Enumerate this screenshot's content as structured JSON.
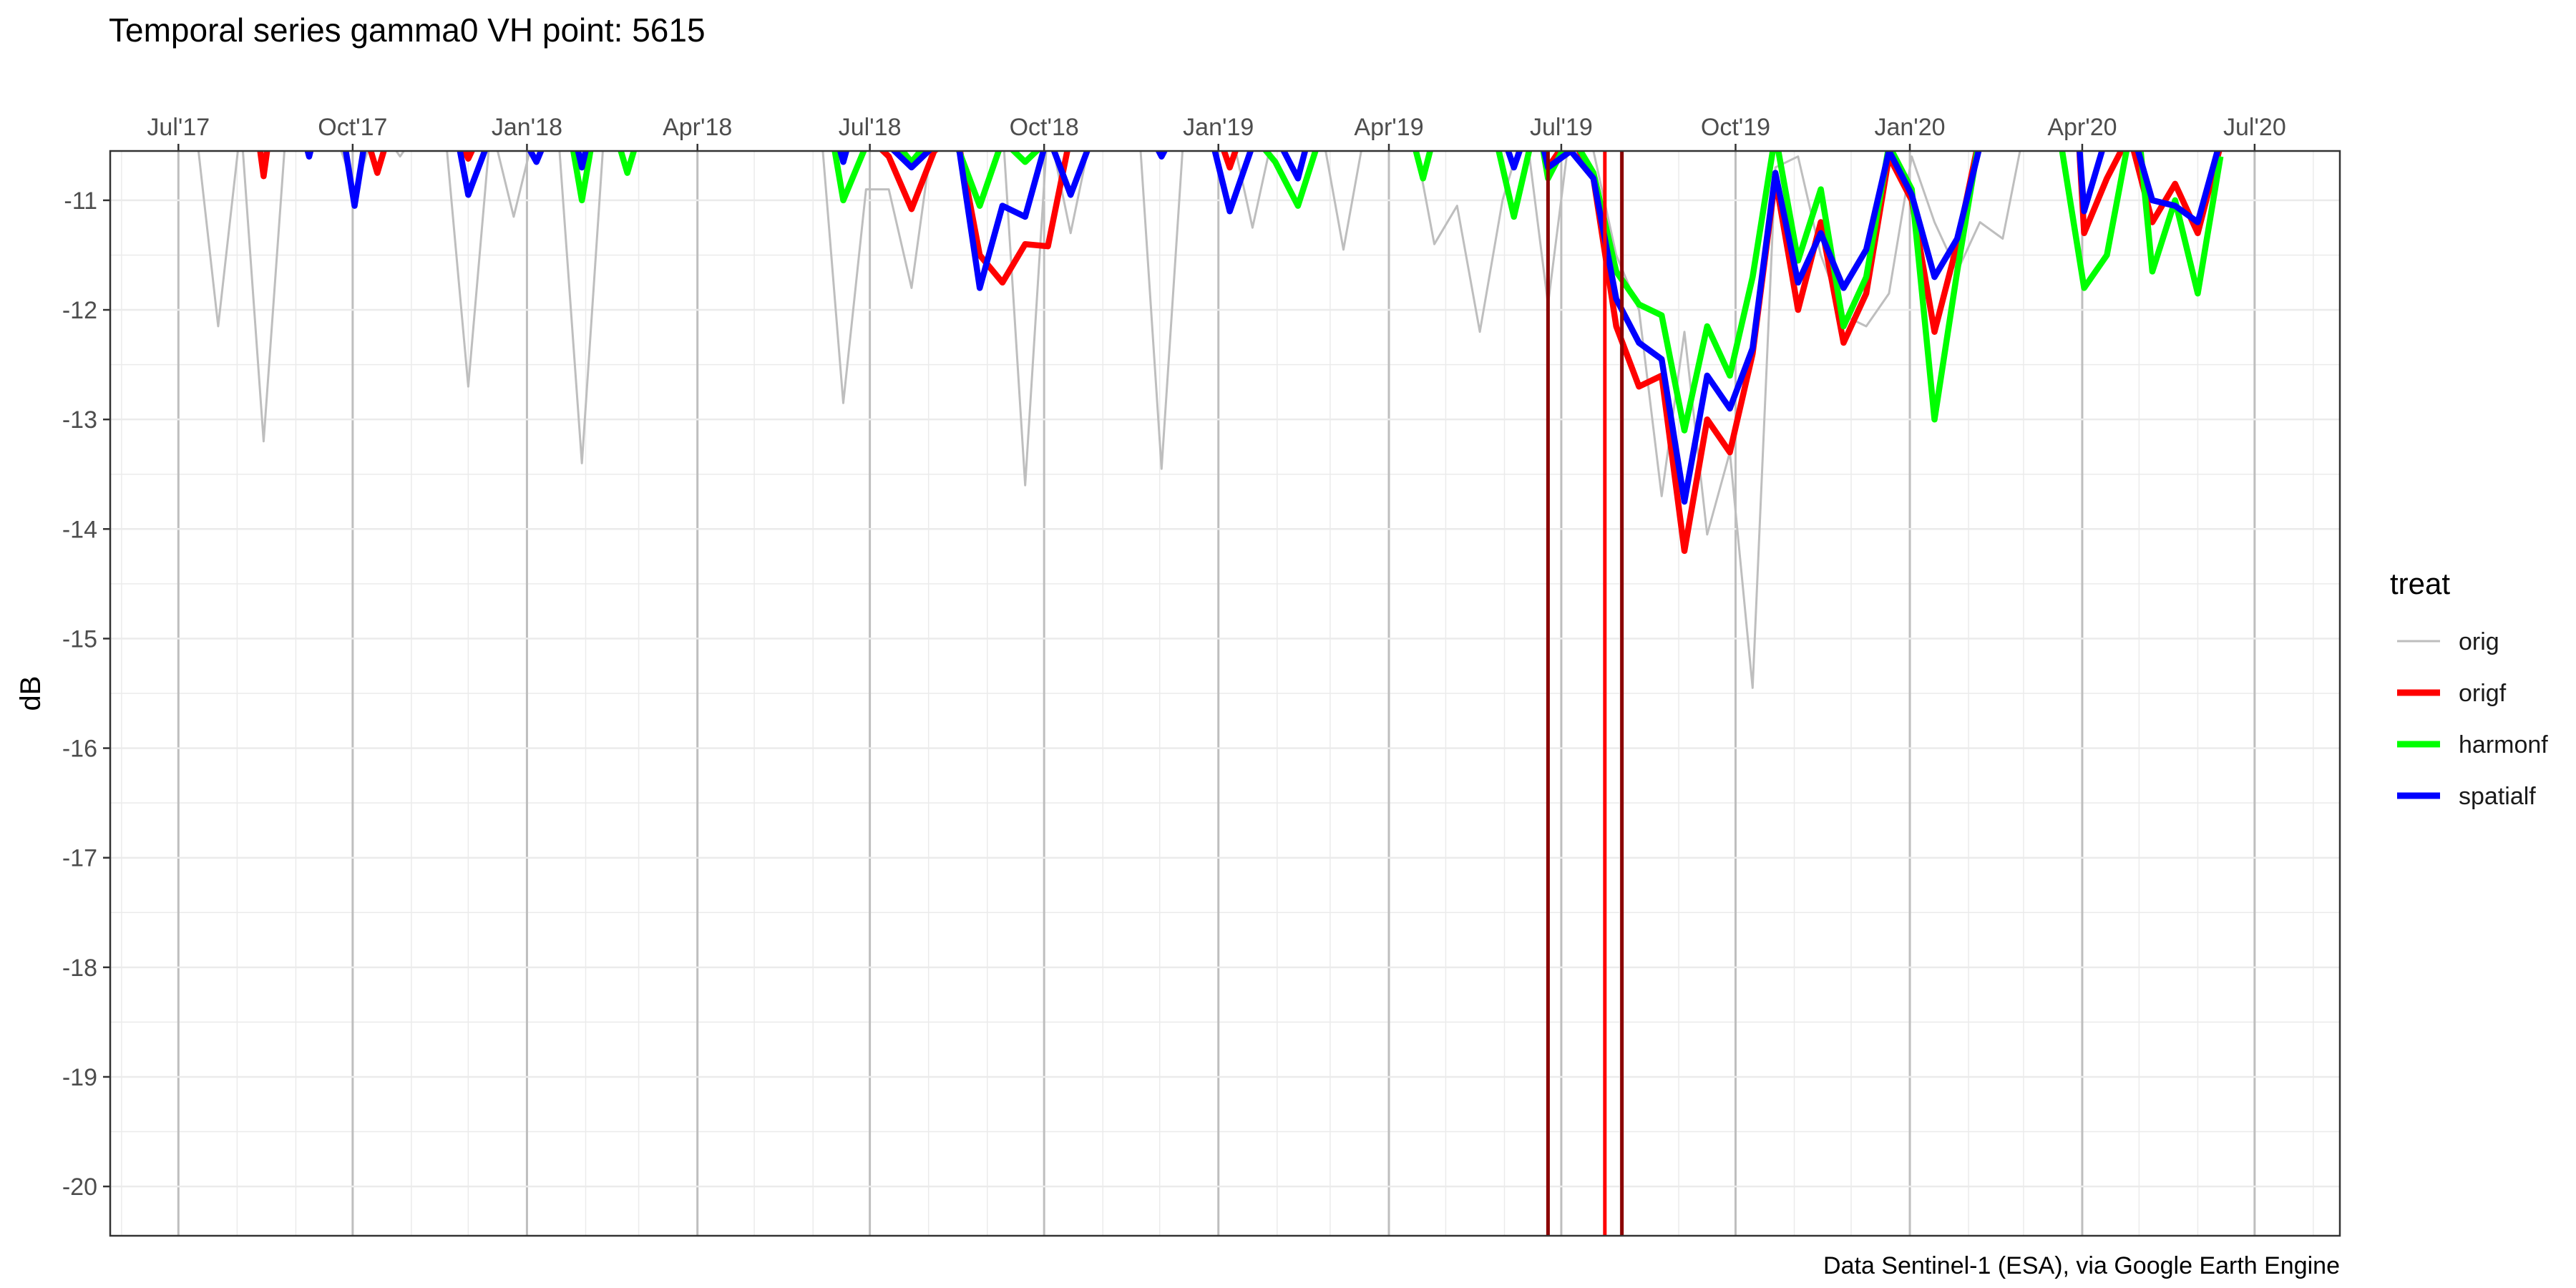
{
  "chart_data": {
    "type": "line",
    "title": "Temporal series gamma0 VH point: 5615",
    "xlabel": "",
    "ylabel": "dB",
    "caption": "Data Sentinel-1 (ESA), via Google Earth Engine",
    "x_axis_position": "top",
    "xlim": [
      "2017-05-26",
      "2020-08-15"
    ],
    "ylim": [
      -20.45,
      -10.55
    ],
    "grid": true,
    "x_ticks": [
      {
        "date": "2017-07-01",
        "label": "Jul'17"
      },
      {
        "date": "2017-10-01",
        "label": "Oct'17"
      },
      {
        "date": "2018-01-01",
        "label": "Jan'18"
      },
      {
        "date": "2018-04-01",
        "label": "Apr'18"
      },
      {
        "date": "2018-07-01",
        "label": "Jul'18"
      },
      {
        "date": "2018-10-01",
        "label": "Oct'18"
      },
      {
        "date": "2019-01-01",
        "label": "Jan'19"
      },
      {
        "date": "2019-04-01",
        "label": "Apr'19"
      },
      {
        "date": "2019-07-01",
        "label": "Jul'19"
      },
      {
        "date": "2019-10-01",
        "label": "Oct'19"
      },
      {
        "date": "2020-01-01",
        "label": "Jan'20"
      },
      {
        "date": "2020-04-01",
        "label": "Apr'20"
      },
      {
        "date": "2020-07-01",
        "label": "Jul'20"
      }
    ],
    "y_ticks": [
      -11,
      -12,
      -13,
      -14,
      -15,
      -16,
      -17,
      -18,
      -19,
      -20
    ],
    "y_tick_labels": [
      "-11",
      "-12",
      "-13",
      "-14",
      "-15",
      "-16",
      "-17",
      "-18",
      "-19",
      "-20"
    ],
    "legend": {
      "title": "treat",
      "position": "right"
    },
    "series": [
      {
        "name": "orig",
        "color": "#bebebe",
        "style": "thin",
        "points": [
          [
            "2017-07-10",
            -10.3
          ],
          [
            "2017-07-22",
            -12.15
          ],
          [
            "2017-08-03",
            -10.3
          ],
          [
            "2017-08-15",
            -13.2
          ],
          [
            "2017-08-27",
            -10.3
          ],
          [
            "2017-09-08",
            -10.4
          ],
          [
            "2017-09-20",
            -10.3
          ],
          [
            "2017-10-02",
            -10.9
          ],
          [
            "2017-10-14",
            -10.3
          ],
          [
            "2017-10-26",
            -10.6
          ],
          [
            "2017-11-07",
            -10.3
          ],
          [
            "2017-11-19",
            -10.4
          ],
          [
            "2017-12-01",
            -12.7
          ],
          [
            "2017-12-13",
            -10.3
          ],
          [
            "2017-12-25",
            -11.15
          ],
          [
            "2018-01-06",
            -10.3
          ],
          [
            "2018-01-18",
            -10.5
          ],
          [
            "2018-01-30",
            -13.4
          ],
          [
            "2018-02-11",
            -10.3
          ],
          [
            "2018-06-05",
            -10.3
          ],
          [
            "2018-06-17",
            -12.85
          ],
          [
            "2018-06-29",
            -10.9
          ],
          [
            "2018-07-11",
            -10.9
          ],
          [
            "2018-07-23",
            -11.8
          ],
          [
            "2018-08-04",
            -10.3
          ],
          [
            "2018-09-09",
            -10.3
          ],
          [
            "2018-09-21",
            -13.6
          ],
          [
            "2018-10-03",
            -10.3
          ],
          [
            "2018-10-15",
            -11.3
          ],
          [
            "2018-10-27",
            -10.3
          ],
          [
            "2018-11-20",
            -10.3
          ],
          [
            "2018-12-02",
            -13.45
          ],
          [
            "2018-12-14",
            -10.3
          ],
          [
            "2019-01-07",
            -10.3
          ],
          [
            "2019-01-19",
            -11.25
          ],
          [
            "2019-01-31",
            -10.3
          ],
          [
            "2019-02-24",
            -10.3
          ],
          [
            "2019-03-08",
            -11.45
          ],
          [
            "2019-03-20",
            -10.3
          ],
          [
            "2019-04-13",
            -10.3
          ],
          [
            "2019-04-25",
            -11.4
          ],
          [
            "2019-05-07",
            -11.05
          ],
          [
            "2019-05-19",
            -12.2
          ],
          [
            "2019-05-31",
            -11.0
          ],
          [
            "2019-06-12",
            -10.3
          ],
          [
            "2019-06-24",
            -11.95
          ],
          [
            "2019-07-06",
            -10.3
          ],
          [
            "2019-07-18",
            -10.55
          ],
          [
            "2019-07-30",
            -11.5
          ],
          [
            "2019-08-11",
            -12.0
          ],
          [
            "2019-08-23",
            -13.7
          ],
          [
            "2019-09-04",
            -12.2
          ],
          [
            "2019-09-16",
            -14.05
          ],
          [
            "2019-09-28",
            -13.3
          ],
          [
            "2019-10-10",
            -15.45
          ],
          [
            "2019-10-22",
            -10.7
          ],
          [
            "2019-11-03",
            -10.6
          ],
          [
            "2019-11-15",
            -11.5
          ],
          [
            "2019-11-27",
            -12.05
          ],
          [
            "2019-12-09",
            -12.15
          ],
          [
            "2019-12-21",
            -11.85
          ],
          [
            "2020-01-02",
            -10.6
          ],
          [
            "2020-01-14",
            -11.2
          ],
          [
            "2020-01-26",
            -11.65
          ],
          [
            "2020-02-07",
            -11.2
          ],
          [
            "2020-02-19",
            -11.35
          ],
          [
            "2020-03-02",
            -10.3
          ]
        ]
      },
      {
        "name": "origf",
        "color": "#ff0000",
        "style": "thick",
        "points": [
          [
            "2017-08-12",
            -10.4
          ],
          [
            "2017-08-15",
            -10.78
          ],
          [
            "2017-08-18",
            -10.4
          ],
          null,
          [
            "2017-10-08",
            -10.4
          ],
          [
            "2017-10-14",
            -10.75
          ],
          [
            "2017-10-20",
            -10.4
          ],
          null,
          [
            "2017-11-25",
            -10.4
          ],
          [
            "2017-12-01",
            -10.62
          ],
          [
            "2017-12-07",
            -10.4
          ],
          null,
          [
            "2018-06-29",
            -10.4
          ],
          [
            "2018-07-11",
            -10.6
          ],
          [
            "2018-07-23",
            -11.08
          ],
          [
            "2018-08-04",
            -10.55
          ],
          [
            "2018-08-16",
            -10.4
          ],
          [
            "2018-08-28",
            -11.5
          ],
          [
            "2018-09-09",
            -11.75
          ],
          [
            "2018-09-21",
            -11.4
          ],
          [
            "2018-10-03",
            -11.42
          ],
          [
            "2018-10-15",
            -10.4
          ],
          null,
          [
            "2019-01-01",
            -10.4
          ],
          [
            "2019-01-07",
            -10.7
          ],
          [
            "2019-01-13",
            -10.4
          ],
          null,
          [
            "2019-06-20",
            -10.4
          ],
          [
            "2019-06-24",
            -10.7
          ],
          [
            "2019-07-06",
            -10.4
          ],
          [
            "2019-07-18",
            -10.8
          ],
          [
            "2019-07-30",
            -12.15
          ],
          [
            "2019-08-11",
            -12.7
          ],
          [
            "2019-08-23",
            -12.6
          ],
          [
            "2019-09-04",
            -14.2
          ],
          [
            "2019-09-16",
            -13.0
          ],
          [
            "2019-09-28",
            -13.3
          ],
          [
            "2019-10-10",
            -12.4
          ],
          [
            "2019-10-22",
            -10.8
          ],
          [
            "2019-11-03",
            -12.0
          ],
          [
            "2019-11-15",
            -11.2
          ],
          [
            "2019-11-27",
            -12.3
          ],
          [
            "2019-12-09",
            -11.85
          ],
          [
            "2019-12-21",
            -10.6
          ],
          [
            "2020-01-02",
            -11.0
          ],
          [
            "2020-01-14",
            -12.2
          ],
          [
            "2020-01-26",
            -11.4
          ],
          [
            "2020-02-07",
            -10.4
          ],
          null,
          [
            "2020-03-30",
            -10.4
          ],
          [
            "2020-04-02",
            -11.3
          ],
          [
            "2020-04-14",
            -10.8
          ],
          [
            "2020-04-26",
            -10.4
          ],
          [
            "2020-05-08",
            -11.2
          ],
          [
            "2020-05-20",
            -10.85
          ],
          [
            "2020-06-01",
            -11.3
          ],
          [
            "2020-06-13",
            -10.5
          ]
        ]
      },
      {
        "name": "harmonf",
        "color": "#00ff00",
        "style": "thick",
        "points": [
          [
            "2018-01-24",
            -10.4
          ],
          [
            "2018-01-30",
            -11.0
          ],
          [
            "2018-02-05",
            -10.4
          ],
          null,
          [
            "2018-02-17",
            -10.4
          ],
          [
            "2018-02-23",
            -10.75
          ],
          [
            "2018-03-01",
            -10.4
          ],
          null,
          [
            "2018-06-11",
            -10.4
          ],
          [
            "2018-06-17",
            -11.0
          ],
          [
            "2018-06-29",
            -10.5
          ],
          [
            "2018-07-11",
            -10.4
          ],
          [
            "2018-07-23",
            -10.65
          ],
          [
            "2018-08-04",
            -10.4
          ],
          [
            "2018-08-16",
            -10.5
          ],
          [
            "2018-08-28",
            -11.05
          ],
          [
            "2018-09-09",
            -10.45
          ],
          [
            "2018-09-21",
            -10.65
          ],
          [
            "2018-10-03",
            -10.45
          ],
          null,
          [
            "2019-01-19",
            -10.4
          ],
          [
            "2019-01-31",
            -10.65
          ],
          [
            "2019-02-12",
            -11.05
          ],
          [
            "2019-02-24",
            -10.4
          ],
          null,
          [
            "2019-04-13",
            -10.4
          ],
          [
            "2019-04-19",
            -10.8
          ],
          [
            "2019-04-25",
            -10.4
          ],
          null,
          [
            "2019-05-27",
            -10.4
          ],
          [
            "2019-06-06",
            -11.15
          ],
          [
            "2019-06-16",
            -10.4
          ],
          null,
          [
            "2019-06-20",
            -10.4
          ],
          [
            "2019-06-24",
            -10.8
          ],
          [
            "2019-07-06",
            -10.4
          ],
          [
            "2019-07-18",
            -10.75
          ],
          [
            "2019-07-30",
            -11.65
          ],
          [
            "2019-08-11",
            -11.95
          ],
          [
            "2019-08-23",
            -12.05
          ],
          [
            "2019-09-04",
            -13.1
          ],
          [
            "2019-09-16",
            -12.15
          ],
          [
            "2019-09-28",
            -12.6
          ],
          [
            "2019-10-10",
            -11.7
          ],
          [
            "2019-10-22",
            -10.4
          ],
          [
            "2019-11-03",
            -11.55
          ],
          [
            "2019-11-15",
            -10.9
          ],
          [
            "2019-11-27",
            -12.15
          ],
          [
            "2019-12-09",
            -11.7
          ],
          [
            "2019-12-21",
            -10.5
          ],
          [
            "2020-01-02",
            -10.9
          ],
          [
            "2020-01-14",
            -13.0
          ],
          [
            "2020-01-26",
            -11.65
          ],
          [
            "2020-02-07",
            -10.4
          ],
          null,
          [
            "2020-03-20",
            -10.4
          ],
          [
            "2020-04-02",
            -11.8
          ],
          [
            "2020-04-14",
            -11.5
          ],
          [
            "2020-04-26",
            -10.4
          ],
          null,
          [
            "2020-05-01",
            -10.4
          ],
          [
            "2020-05-08",
            -11.65
          ],
          [
            "2020-05-20",
            -11.0
          ],
          [
            "2020-06-01",
            -11.85
          ],
          [
            "2020-06-13",
            -10.6
          ]
        ]
      },
      {
        "name": "spatialf",
        "color": "#0000ff",
        "style": "thick",
        "points": [
          [
            "2017-09-05",
            -10.4
          ],
          [
            "2017-09-08",
            -10.6
          ],
          [
            "2017-09-11",
            -10.4
          ],
          null,
          [
            "2017-09-26",
            -10.4
          ],
          [
            "2017-10-02",
            -11.05
          ],
          [
            "2017-10-08",
            -10.4
          ],
          null,
          [
            "2017-11-25",
            -10.4
          ],
          [
            "2017-12-01",
            -10.95
          ],
          [
            "2017-12-13",
            -10.4
          ],
          null,
          [
            "2017-12-29",
            -10.4
          ],
          [
            "2018-01-06",
            -10.65
          ],
          [
            "2018-01-12",
            -10.4
          ],
          null,
          [
            "2018-01-26",
            -10.4
          ],
          [
            "2018-01-30",
            -10.7
          ],
          [
            "2018-02-03",
            -10.4
          ],
          null,
          [
            "2018-06-13",
            -10.4
          ],
          [
            "2018-06-17",
            -10.65
          ],
          [
            "2018-06-21",
            -10.4
          ],
          null,
          [
            "2018-07-05",
            -10.4
          ],
          [
            "2018-07-23",
            -10.7
          ],
          [
            "2018-08-04",
            -10.5
          ],
          [
            "2018-08-16",
            -10.4
          ],
          [
            "2018-08-28",
            -11.8
          ],
          [
            "2018-09-09",
            -11.05
          ],
          [
            "2018-09-21",
            -11.15
          ],
          [
            "2018-10-03",
            -10.4
          ],
          [
            "2018-10-15",
            -10.95
          ],
          [
            "2018-10-27",
            -10.4
          ],
          null,
          [
            "2018-11-26",
            -10.4
          ],
          [
            "2018-12-02",
            -10.6
          ],
          [
            "2018-12-08",
            -10.4
          ],
          null,
          [
            "2018-12-28",
            -10.4
          ],
          [
            "2019-01-07",
            -11.1
          ],
          [
            "2019-01-19",
            -10.5
          ],
          [
            "2019-01-31",
            -10.4
          ],
          [
            "2019-02-12",
            -10.8
          ],
          [
            "2019-02-18",
            -10.4
          ],
          null,
          [
            "2019-05-31",
            -10.4
          ],
          [
            "2019-06-06",
            -10.7
          ],
          [
            "2019-06-12",
            -10.4
          ],
          null,
          [
            "2019-06-20",
            -10.4
          ],
          [
            "2019-06-24",
            -10.7
          ],
          [
            "2019-07-06",
            -10.55
          ],
          [
            "2019-07-18",
            -10.8
          ],
          [
            "2019-07-30",
            -11.9
          ],
          [
            "2019-08-11",
            -12.3
          ],
          [
            "2019-08-23",
            -12.45
          ],
          [
            "2019-09-04",
            -13.75
          ],
          [
            "2019-09-16",
            -12.6
          ],
          [
            "2019-09-28",
            -12.9
          ],
          [
            "2019-10-10",
            -12.35
          ],
          [
            "2019-10-22",
            -10.75
          ],
          [
            "2019-11-03",
            -11.75
          ],
          [
            "2019-11-15",
            -11.3
          ],
          [
            "2019-11-27",
            -11.8
          ],
          [
            "2019-12-09",
            -11.45
          ],
          [
            "2019-12-21",
            -10.55
          ],
          [
            "2020-01-02",
            -10.95
          ],
          [
            "2020-01-14",
            -11.7
          ],
          [
            "2020-01-26",
            -11.35
          ],
          [
            "2020-02-07",
            -10.5
          ],
          null,
          [
            "2020-03-30",
            -10.4
          ],
          [
            "2020-04-02",
            -11.1
          ],
          [
            "2020-04-14",
            -10.4
          ],
          null,
          [
            "2020-04-28",
            -10.4
          ],
          [
            "2020-05-08",
            -11.0
          ],
          [
            "2020-05-20",
            -11.05
          ],
          [
            "2020-06-01",
            -11.2
          ],
          [
            "2020-06-13",
            -10.45
          ]
        ]
      }
    ],
    "vlines": [
      {
        "date": "2019-06-24",
        "color": "#8b0000"
      },
      {
        "date": "2019-07-24",
        "color": "#ff0000"
      },
      {
        "date": "2019-08-02",
        "color": "#8b0000"
      }
    ]
  }
}
